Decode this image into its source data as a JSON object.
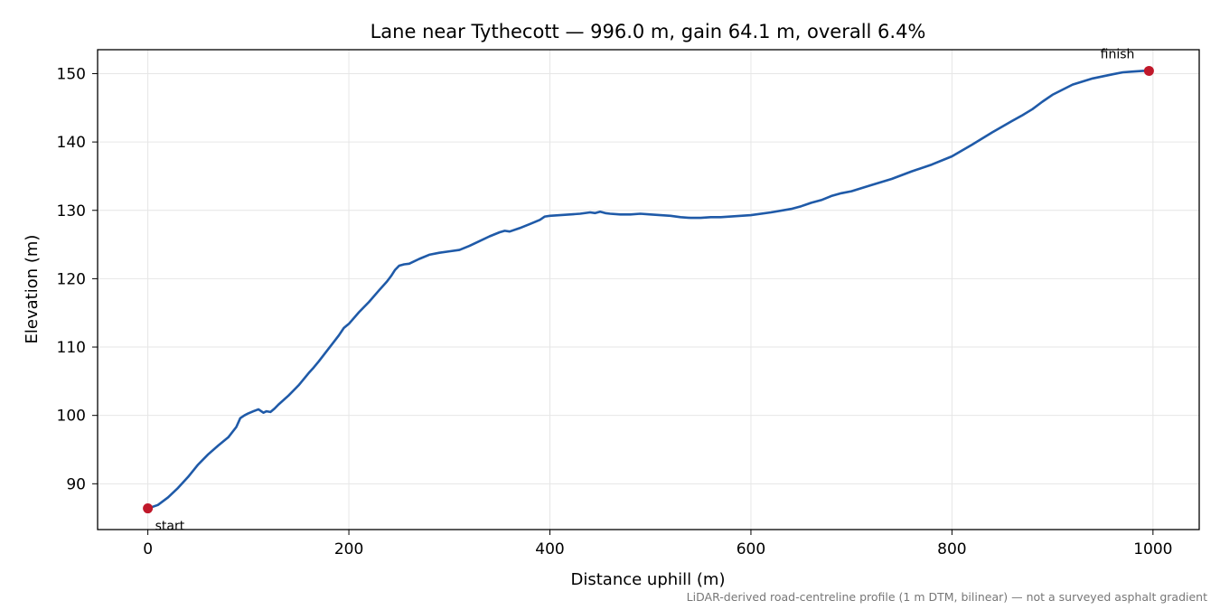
{
  "chart_data": {
    "type": "line",
    "title": "Lane near Tythecott — 996.0 m, gain 64.1 m, overall 6.4%",
    "xlabel": "Distance uphill (m)",
    "ylabel": "Elevation (m)",
    "footnote": "LiDAR-derived road-centreline profile (1 m DTM, bilinear) — not a surveyed asphalt gradient",
    "xlim": [
      -50,
      1046
    ],
    "ylim": [
      83.3,
      153.5
    ],
    "xticks": [
      0,
      200,
      400,
      600,
      800,
      1000
    ],
    "yticks": [
      90,
      100,
      110,
      120,
      130,
      140,
      150
    ],
    "grid": true,
    "colors": {
      "line": "#1f5aa8",
      "marker": "#c0182a",
      "grid": "#e6e6e6",
      "note": "#777777"
    },
    "series": [
      {
        "x": [
          0,
          10,
          20,
          30,
          40,
          50,
          60,
          70,
          80,
          88,
          92,
          96,
          100,
          105,
          110,
          115,
          118,
          122,
          126,
          130,
          140,
          150,
          160,
          165,
          170,
          180,
          190,
          195,
          200,
          210,
          220,
          230,
          238,
          242,
          246,
          250,
          255,
          260,
          270,
          280,
          290,
          300,
          310,
          320,
          330,
          340,
          350,
          355,
          360,
          370,
          380,
          390,
          395,
          400,
          410,
          420,
          430,
          440,
          445,
          450,
          455,
          460,
          470,
          480,
          490,
          500,
          510,
          520,
          530,
          540,
          550,
          560,
          570,
          580,
          590,
          600,
          620,
          640,
          650,
          660,
          670,
          680,
          690,
          700,
          720,
          740,
          760,
          780,
          800,
          820,
          840,
          860,
          870,
          880,
          890,
          900,
          920,
          940,
          960,
          970,
          980,
          990,
          996
        ],
        "y": [
          86.4,
          86.9,
          88.0,
          89.4,
          91.0,
          92.8,
          94.3,
          95.6,
          96.8,
          98.3,
          99.6,
          100.0,
          100.3,
          100.6,
          100.9,
          100.4,
          100.6,
          100.5,
          101.0,
          101.6,
          102.9,
          104.4,
          106.2,
          107.0,
          107.9,
          109.8,
          111.7,
          112.8,
          113.4,
          115.1,
          116.6,
          118.3,
          119.6,
          120.4,
          121.3,
          121.9,
          122.1,
          122.2,
          122.9,
          123.5,
          123.8,
          124.0,
          124.2,
          124.8,
          125.5,
          126.2,
          126.8,
          127.0,
          126.9,
          127.4,
          128.0,
          128.6,
          129.1,
          129.2,
          129.3,
          129.4,
          129.5,
          129.7,
          129.6,
          129.8,
          129.6,
          129.5,
          129.4,
          129.4,
          129.5,
          129.4,
          129.3,
          129.2,
          129.0,
          128.9,
          128.9,
          129.0,
          129.0,
          129.1,
          129.2,
          129.3,
          129.7,
          130.2,
          130.6,
          131.1,
          131.5,
          132.1,
          132.5,
          132.8,
          133.7,
          134.6,
          135.7,
          136.7,
          137.9,
          139.6,
          141.4,
          143.1,
          143.9,
          144.8,
          145.9,
          146.9,
          148.4,
          149.3,
          149.9,
          150.2,
          150.3,
          150.4,
          150.4
        ]
      }
    ],
    "annotations": [
      {
        "label": "start",
        "x": 0,
        "y": 86.4
      },
      {
        "label": "finish",
        "x": 996,
        "y": 150.4
      }
    ]
  }
}
